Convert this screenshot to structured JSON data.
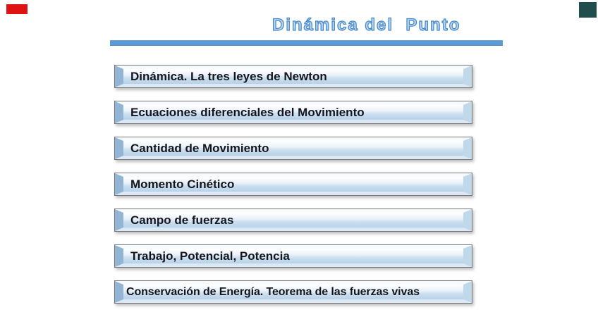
{
  "slide": {
    "title": "Dinámica del  Punto",
    "items": [
      "Dinámica. La tres leyes de Newton",
      "Ecuaciones diferenciales del Movimiento",
      "Cantidad de Movimiento",
      "Momento Cinético",
      "Campo de fuerzas",
      "Trabajo, Potencial, Potencia",
      "Conservación de Energía. Teorema de las fuerzas vivas"
    ],
    "colors": {
      "title_fill": "#B9D5EE",
      "title_outline": "#4289CC",
      "underline": "#5B9BD5",
      "bar_gradient_top": "#FFFFFF",
      "bar_gradient_bottom": "#B7D2E8",
      "bar_bevel_left": "#92B5D5",
      "bar_border": "#777777",
      "bar_text": "#15151E",
      "accent_red": "#E01313",
      "accent_teal": "#1F4E4D"
    }
  }
}
